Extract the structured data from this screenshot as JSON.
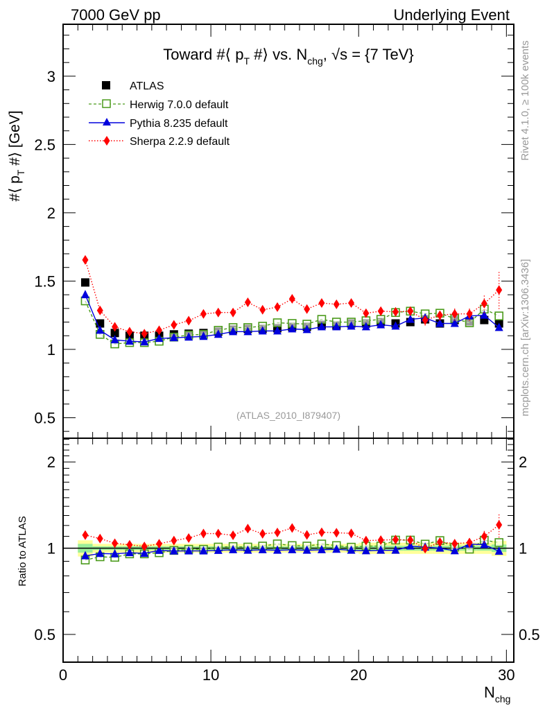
{
  "chart_data": {
    "type": "scatter",
    "header_left": "7000 GeV pp",
    "header_right": "Underlying Event",
    "title": "Toward #⟨ p_T #⟩ vs. N_chg, √s = {7 TeV}",
    "title_parts": {
      "pre": "Toward #⟨ p",
      "sub1": "T",
      "mid": " #⟩ vs. N",
      "sub2": "chg",
      "post": ", √s = {7 TeV}"
    },
    "ylabel": "#⟨ p_T #⟩ [GeV]",
    "ylabel_parts": {
      "pre": "#⟨ p",
      "sub": "T",
      "post": " #⟩ [GeV]"
    },
    "xlabel": "N_chg",
    "xlabel_parts": {
      "main": "N",
      "sub": "chg"
    },
    "ratio_ylabel": "Ratio to ATLAS",
    "analysis_tag": "(ATLAS_2010_I879407)",
    "side_label_top": "Rivet 4.1.0, ≥ 100k events",
    "side_label_bottom": "mcplots.cern.ch [arXiv:1306.3436]",
    "xlim": [
      0,
      30.5
    ],
    "ylim": [
      0.35,
      3.38
    ],
    "ratio_ylim": [
      0.4,
      2.42
    ],
    "ratio_scale": "log",
    "x_ticks": [
      0,
      10,
      20,
      30
    ],
    "y_ticks": [
      0.5,
      1,
      1.5,
      2,
      2.5,
      3
    ],
    "ratio_y_ticks": [
      0.5,
      1,
      2
    ],
    "legend_position": "top-left",
    "grid": false,
    "x": [
      1.5,
      2.5,
      3.5,
      4.5,
      5.5,
      6.5,
      7.5,
      8.5,
      9.5,
      10.5,
      11.5,
      12.5,
      13.5,
      14.5,
      15.5,
      16.5,
      17.5,
      18.5,
      19.5,
      20.5,
      21.5,
      22.5,
      23.5,
      24.5,
      25.5,
      26.5,
      27.5,
      28.5,
      29.5
    ],
    "series": [
      {
        "name": "ATLAS",
        "color": "#000000",
        "marker": "square-filled",
        "line": "none",
        "values": [
          1.49,
          1.19,
          1.12,
          1.1,
          1.1,
          1.1,
          1.11,
          1.115,
          1.12,
          1.13,
          1.145,
          1.15,
          1.15,
          1.155,
          1.165,
          1.165,
          1.18,
          1.175,
          1.19,
          1.19,
          1.2,
          1.19,
          1.2,
          1.22,
          1.19,
          1.215,
          1.205,
          1.215,
          1.19
        ],
        "band_stat": [
          0.035,
          0.015,
          0.015,
          0.015,
          0.015,
          0.015,
          0.015,
          0.015,
          0.015,
          0.015,
          0.015,
          0.015,
          0.015,
          0.015,
          0.015,
          0.015,
          0.015,
          0.015,
          0.015,
          0.02,
          0.02,
          0.02,
          0.02,
          0.02,
          0.02,
          0.02,
          0.02,
          0.02,
          0.03
        ],
        "band_total": [
          0.065,
          0.035,
          0.035,
          0.035,
          0.035,
          0.035,
          0.035,
          0.035,
          0.035,
          0.035,
          0.035,
          0.035,
          0.035,
          0.035,
          0.035,
          0.035,
          0.035,
          0.035,
          0.035,
          0.045,
          0.045,
          0.045,
          0.045,
          0.045,
          0.045,
          0.045,
          0.045,
          0.045,
          0.06
        ]
      },
      {
        "name": "Herwig 7.0.0 default",
        "color": "#4a9a1a",
        "marker": "square-open",
        "line": "dashed",
        "values": [
          1.355,
          1.11,
          1.04,
          1.05,
          1.05,
          1.06,
          1.09,
          1.105,
          1.11,
          1.14,
          1.16,
          1.16,
          1.17,
          1.195,
          1.19,
          1.185,
          1.22,
          1.2,
          1.2,
          1.21,
          1.22,
          1.27,
          1.28,
          1.26,
          1.265,
          1.225,
          1.195,
          1.295,
          1.245
        ],
        "ratio": [
          0.909,
          0.933,
          0.929,
          0.955,
          0.955,
          0.964,
          0.982,
          0.991,
          0.991,
          1.009,
          1.013,
          1.009,
          1.017,
          1.035,
          1.021,
          1.017,
          1.034,
          1.021,
          1.008,
          1.017,
          1.017,
          1.067,
          1.067,
          1.033,
          1.063,
          1.008,
          0.992,
          1.066,
          1.046
        ]
      },
      {
        "name": "Pythia 8.235 default",
        "color": "#0000dd",
        "marker": "triangle-filled",
        "line": "solid",
        "values": [
          1.4,
          1.14,
          1.07,
          1.06,
          1.055,
          1.08,
          1.085,
          1.09,
          1.095,
          1.11,
          1.13,
          1.13,
          1.135,
          1.135,
          1.15,
          1.145,
          1.165,
          1.165,
          1.17,
          1.165,
          1.18,
          1.17,
          1.22,
          1.23,
          1.19,
          1.19,
          1.245,
          1.25,
          1.16
        ],
        "ratio": [
          0.94,
          0.958,
          0.955,
          0.964,
          0.959,
          0.982,
          0.977,
          0.978,
          0.978,
          0.982,
          0.987,
          0.983,
          0.987,
          0.983,
          0.987,
          0.983,
          0.987,
          0.991,
          0.983,
          0.979,
          0.983,
          0.983,
          1.017,
          1.008,
          1.0,
          0.979,
          1.033,
          1.029,
          0.975
        ]
      },
      {
        "name": "Sherpa 2.2.9 default",
        "color": "#ff0000",
        "marker": "diamond-filled",
        "line": "dotted",
        "values": [
          1.655,
          1.285,
          1.165,
          1.13,
          1.115,
          1.14,
          1.18,
          1.21,
          1.26,
          1.27,
          1.27,
          1.345,
          1.29,
          1.31,
          1.37,
          1.295,
          1.34,
          1.33,
          1.34,
          1.265,
          1.28,
          1.275,
          1.28,
          1.215,
          1.25,
          1.26,
          1.26,
          1.335,
          1.435
        ],
        "errors": [
          0,
          0,
          0,
          0,
          0,
          0,
          0,
          0,
          0,
          0,
          0,
          0,
          0,
          0,
          0,
          0,
          0,
          0,
          0,
          0,
          0.03,
          0.03,
          0.03,
          0.04,
          0.04,
          0.05,
          0.05,
          0.07,
          0.14
        ],
        "ratio": [
          1.111,
          1.08,
          1.04,
          1.027,
          1.014,
          1.036,
          1.063,
          1.085,
          1.125,
          1.124,
          1.109,
          1.17,
          1.122,
          1.134,
          1.176,
          1.112,
          1.136,
          1.132,
          1.126,
          1.063,
          1.067,
          1.071,
          1.067,
          0.996,
          1.05,
          1.037,
          1.046,
          1.099,
          1.206
        ]
      }
    ]
  }
}
